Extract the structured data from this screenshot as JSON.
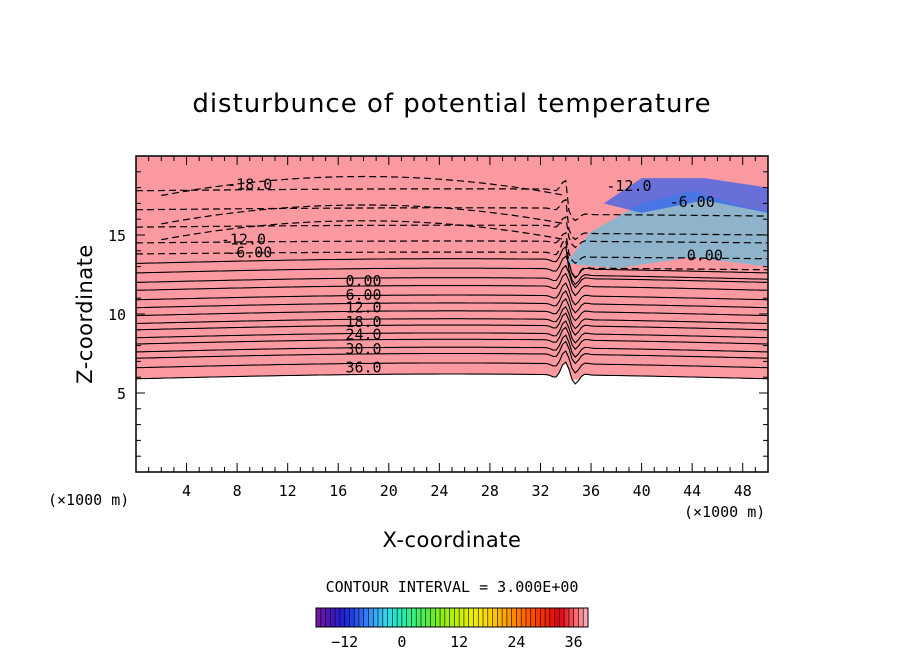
{
  "chart_data": {
    "type": "heatmap",
    "title": "disturbunce of potential temperature",
    "xlabel": "X-coordinate",
    "ylabel": "Z-coordinate",
    "x_unit_label": "(×1000 m)",
    "z_unit_label": "(×1000 m)",
    "xlim": [
      0,
      50
    ],
    "ylim": [
      0,
      20
    ],
    "x_ticks": [
      4,
      8,
      12,
      16,
      20,
      24,
      28,
      32,
      36,
      40,
      44,
      48
    ],
    "y_ticks": [
      5,
      10,
      15
    ],
    "x_tick_labels": [
      "4",
      "8",
      "12",
      "16",
      "20",
      "24",
      "28",
      "32",
      "36",
      "40",
      "44",
      "48"
    ],
    "y_tick_labels": [
      "5",
      "10",
      "15"
    ],
    "contour_interval_text": "CONTOUR INTERVAL = 3.000E+00",
    "colorbar": {
      "range": [
        -18,
        39
      ],
      "tick_values": [
        -12,
        0,
        12,
        24,
        36
      ],
      "tick_labels": [
        "−12",
        "0",
        "12",
        "24",
        "36"
      ]
    },
    "contour_labels": [
      {
        "text": "-18.0",
        "x": 9,
        "z": 18.2
      },
      {
        "text": "-12.0",
        "x": 8.5,
        "z": 14.7
      },
      {
        "text": "-6.00",
        "x": 9,
        "z": 13.9
      },
      {
        "text": "0.00",
        "x": 18,
        "z": 12.1
      },
      {
        "text": "6.00",
        "x": 18,
        "z": 11.2
      },
      {
        "text": "12.0",
        "x": 18,
        "z": 10.4
      },
      {
        "text": "18.0",
        "x": 18,
        "z": 9.5
      },
      {
        "text": "24.0",
        "x": 18,
        "z": 8.7
      },
      {
        "text": "30.0",
        "x": 18,
        "z": 7.8
      },
      {
        "text": "36.0",
        "x": 18,
        "z": 6.6
      },
      {
        "text": "-12.0",
        "x": 39,
        "z": 18.1
      },
      {
        "text": "-6.00",
        "x": 44,
        "z": 17.1
      },
      {
        "text": "0.00",
        "x": 45,
        "z": 13.7
      }
    ],
    "layers": [
      {
        "zlo": 5.9,
        "zhi": 6.6,
        "value": 38
      },
      {
        "zlo": 6.6,
        "zhi": 7.2,
        "value": 36
      },
      {
        "zlo": 7.2,
        "zhi": 7.6,
        "value": 33
      },
      {
        "zlo": 7.6,
        "zhi": 8.1,
        "value": 30
      },
      {
        "zlo": 8.1,
        "zhi": 8.5,
        "value": 27
      },
      {
        "zlo": 8.5,
        "zhi": 9.0,
        "value": 24
      },
      {
        "zlo": 9.0,
        "zhi": 9.4,
        "value": 21
      },
      {
        "zlo": 9.4,
        "zhi": 9.9,
        "value": 18
      },
      {
        "zlo": 9.9,
        "zhi": 10.4,
        "value": 15
      },
      {
        "zlo": 10.4,
        "zhi": 10.9,
        "value": 12
      },
      {
        "zlo": 10.9,
        "zhi": 11.5,
        "value": 9
      },
      {
        "zlo": 11.5,
        "zhi": 12.0,
        "value": 6
      },
      {
        "zlo": 12.0,
        "zhi": 12.6,
        "value": 3
      },
      {
        "zlo": 12.6,
        "zhi": 13.2,
        "value": 0
      },
      {
        "zlo": 13.2,
        "zhi": 13.8,
        "value": -3
      },
      {
        "zlo": 13.8,
        "zhi": 14.5,
        "value": -6
      },
      {
        "zlo": 14.5,
        "zhi": 15.5,
        "value": -9
      },
      {
        "zlo": 15.5,
        "zhi": 16.6,
        "value": -12
      },
      {
        "zlo": 16.6,
        "zhi": 17.8,
        "value": -15
      },
      {
        "zlo": 17.8,
        "zhi": 20.0,
        "value": -18
      }
    ]
  }
}
